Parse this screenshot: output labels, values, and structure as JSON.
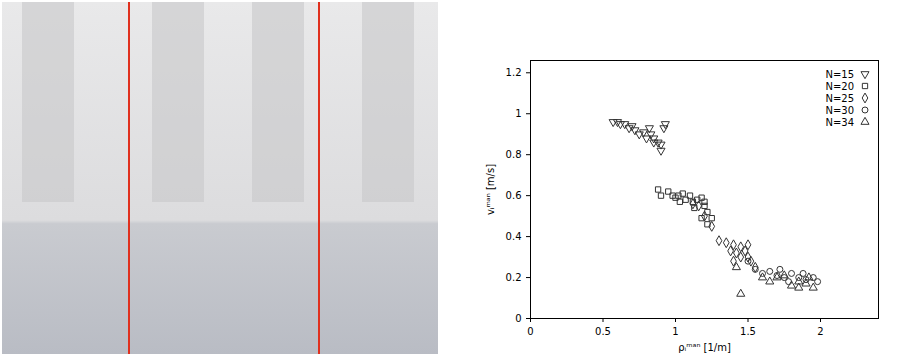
{
  "chart_data": {
    "type": "scatter",
    "xlabel": "ρᵢᵐᵃⁿ [1/m]",
    "ylabel": "vᵢᵐᵃⁿ [m/s]",
    "xlim": [
      0,
      2.4
    ],
    "xticks": [
      0,
      0.5,
      1,
      1.5,
      2
    ],
    "ylim": [
      0,
      1.26
    ],
    "yticks": [
      0,
      0.2,
      0.4,
      0.6,
      0.8,
      1,
      1.2
    ],
    "legend": "top-right",
    "series": [
      {
        "name": "N=15",
        "color": "#333333",
        "marker": "triangle-down",
        "x": [
          0.57,
          0.6,
          0.62,
          0.65,
          0.68,
          0.7,
          0.72,
          0.75,
          0.78,
          0.8,
          0.83,
          0.85,
          0.88,
          0.9,
          0.92,
          0.85,
          0.82,
          0.9,
          0.93
        ],
        "values": [
          0.96,
          0.96,
          0.95,
          0.95,
          0.93,
          0.94,
          0.92,
          0.9,
          0.91,
          0.88,
          0.9,
          0.86,
          0.86,
          0.85,
          0.93,
          0.88,
          0.93,
          0.82,
          0.95
        ]
      },
      {
        "name": "N=20",
        "color": "#333333",
        "marker": "square",
        "x": [
          0.88,
          0.9,
          0.95,
          0.98,
          1.0,
          1.02,
          1.05,
          1.07,
          1.1,
          1.12,
          1.15,
          1.18,
          1.2,
          1.22,
          1.25,
          1.2,
          1.13,
          1.03,
          1.18,
          1.22
        ],
        "values": [
          0.63,
          0.6,
          0.62,
          0.6,
          0.59,
          0.6,
          0.61,
          0.58,
          0.6,
          0.57,
          0.58,
          0.59,
          0.55,
          0.52,
          0.49,
          0.57,
          0.54,
          0.57,
          0.49,
          0.46
        ]
      },
      {
        "name": "N=25",
        "color": "#333333",
        "marker": "diamond",
        "x": [
          1.12,
          1.16,
          1.2,
          1.25,
          1.3,
          1.35,
          1.4,
          1.42,
          1.45,
          1.48,
          1.5,
          1.52,
          1.55,
          1.45,
          1.38,
          1.4,
          1.5
        ],
        "values": [
          0.56,
          0.55,
          0.5,
          0.45,
          0.38,
          0.37,
          0.36,
          0.32,
          0.3,
          0.33,
          0.3,
          0.28,
          0.25,
          0.35,
          0.33,
          0.28,
          0.36
        ]
      },
      {
        "name": "N=30",
        "color": "#333333",
        "marker": "circle",
        "x": [
          1.5,
          1.55,
          1.6,
          1.65,
          1.7,
          1.75,
          1.8,
          1.85,
          1.9,
          1.95,
          1.98,
          1.72,
          1.88,
          1.78
        ],
        "values": [
          0.28,
          0.24,
          0.22,
          0.23,
          0.21,
          0.2,
          0.22,
          0.2,
          0.19,
          0.2,
          0.18,
          0.24,
          0.22,
          0.18
        ]
      },
      {
        "name": "N=34",
        "color": "#333333",
        "marker": "triangle",
        "x": [
          1.42,
          1.45,
          1.6,
          1.65,
          1.7,
          1.75,
          1.8,
          1.85,
          1.9,
          1.95,
          1.92,
          1.85
        ],
        "values": [
          0.25,
          0.12,
          0.2,
          0.18,
          0.2,
          0.21,
          0.16,
          0.15,
          0.17,
          0.15,
          0.2,
          0.18
        ]
      }
    ]
  }
}
